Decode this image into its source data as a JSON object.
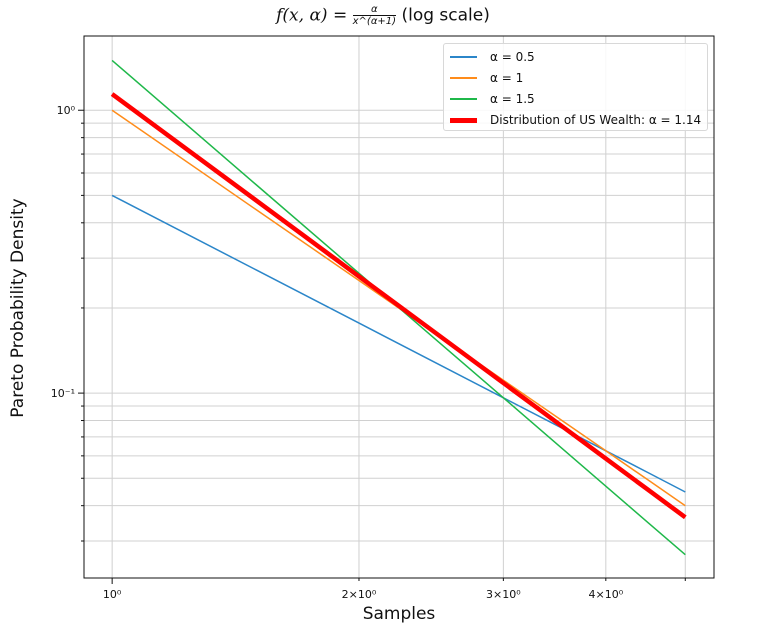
{
  "chart_data": {
    "type": "line",
    "title_prefix": "f(x, α) =",
    "title_numerator": "α",
    "title_denominator": "x^(α+1)",
    "title_suffix": "(log scale)",
    "xlabel": "Samples",
    "ylabel": "Pareto Probability Density",
    "xscale": "log",
    "yscale": "log",
    "xlim": [
      0.924,
      5.42
    ],
    "ylim": [
      0.0222,
      1.83
    ],
    "grid": true,
    "legend_placement": "top-right",
    "x_ticks": [
      {
        "value": 1,
        "label": "10⁰"
      },
      {
        "value": 2,
        "label": "2×10⁰"
      },
      {
        "value": 3,
        "label": "3×10⁰"
      },
      {
        "value": 4,
        "label": "4×10⁰"
      }
    ],
    "y_ticks": [
      {
        "value": 1,
        "label": "10⁰"
      },
      {
        "value": 0.1,
        "label": "10⁻¹"
      }
    ],
    "x": [
      1,
      1.5,
      2,
      2.5,
      3,
      3.5,
      4,
      4.5,
      5
    ],
    "series": [
      {
        "name": "α = 0.5",
        "alpha": 0.5,
        "color": "#2b86c9",
        "width": 1.5
      },
      {
        "name": "α = 1",
        "alpha": 1,
        "color": "#ff8c1a",
        "width": 1.5
      },
      {
        "name": "α = 1.5",
        "alpha": 1.5,
        "color": "#1fb84a",
        "width": 1.5
      },
      {
        "name": "Distribution of US Wealth: α = 1.14",
        "alpha": 1.14,
        "color": "#ff0000",
        "width": 4.5
      }
    ]
  }
}
